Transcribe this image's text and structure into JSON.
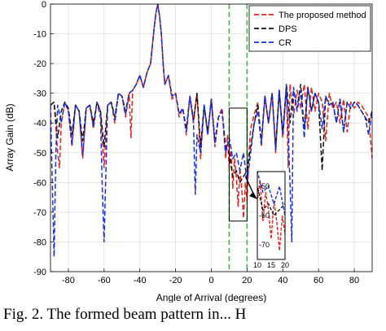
{
  "caption": "Fig. 2. The formed beam pattern in... H",
  "chart_data": {
    "type": "line",
    "title": "",
    "xlabel": "Angle of Arrival (degrees)",
    "ylabel": "Array Gain (dB)",
    "xlim": [
      -90,
      90
    ],
    "ylim": [
      -90,
      0
    ],
    "xticks": [
      -80,
      -60,
      -40,
      -20,
      0,
      20,
      40,
      60,
      80
    ],
    "yticks": [
      0,
      -10,
      -20,
      -30,
      -40,
      -50,
      -60,
      -70,
      -80,
      -90
    ],
    "grid": true,
    "legend_position": "top-right",
    "markers": [
      {
        "x": 10,
        "color": "#22cc22"
      },
      {
        "x": 20,
        "color": "#22cc22"
      }
    ],
    "zoom_box": {
      "x": [
        10,
        20
      ],
      "y": [
        -73,
        -35
      ]
    },
    "inset": {
      "xlim": [
        10,
        20
      ],
      "ylim": [
        -75,
        -45
      ],
      "xticks": [
        10,
        15,
        20
      ],
      "xtick_labels": [
        "10",
        "15",
        "20"
      ],
      "yticks": [
        -50,
        -60,
        -70
      ],
      "ytick_labels": [
        "-50",
        "-60",
        "-70"
      ]
    },
    "series": [
      {
        "name": "The proposed method",
        "color": "#e8201c",
        "dash": "6,3",
        "x": [
          -90,
          -88,
          -86,
          -85,
          -84,
          -82,
          -80,
          -78,
          -76,
          -74,
          -72,
          -70,
          -68,
          -66,
          -64,
          -62,
          -60,
          -58,
          -56,
          -54,
          -52,
          -50,
          -48,
          -46,
          -45,
          -44,
          -42,
          -40,
          -38,
          -36,
          -34,
          -33,
          -32,
          -31,
          -30,
          -29,
          -28,
          -27,
          -26,
          -24,
          -22,
          -20,
          -18,
          -16,
          -14,
          -12,
          -10,
          -8,
          -6,
          -4,
          -2,
          0,
          2,
          4,
          6,
          8,
          9,
          10,
          11,
          12,
          13,
          14,
          15,
          16,
          17,
          18,
          19,
          20,
          21,
          22,
          24,
          26,
          28,
          30,
          32,
          34,
          36,
          38,
          40,
          42,
          43,
          44,
          46,
          48,
          50,
          52,
          54,
          56,
          58,
          60,
          62,
          64,
          66,
          68,
          70,
          72,
          74,
          76,
          78,
          80,
          82,
          84,
          86,
          88,
          90
        ],
        "y": [
          -34,
          -33,
          -50,
          -55,
          -40,
          -33,
          -36,
          -48,
          -34,
          -36,
          -52,
          -35,
          -34,
          -42,
          -33,
          -36,
          -55,
          -34,
          -33,
          -40,
          -30,
          -31,
          -38,
          -30,
          -45,
          -29,
          -27,
          -24,
          -28,
          -23,
          -20,
          -14,
          -8,
          -3,
          0,
          -4,
          -10,
          -20,
          -27,
          -24,
          -32,
          -30,
          -38,
          -35,
          -44,
          -31,
          -40,
          -30,
          -52,
          -34,
          -44,
          -32,
          -48,
          -38,
          -35,
          -52,
          -44,
          -55,
          -48,
          -62,
          -52,
          -58,
          -68,
          -55,
          -62,
          -72,
          -60,
          -66,
          -50,
          -42,
          -37,
          -33,
          -48,
          -31,
          -40,
          -30,
          -50,
          -29,
          -45,
          -28,
          -55,
          -27,
          -38,
          -29,
          -35,
          -27,
          -42,
          -28,
          -36,
          -30,
          -33,
          -46,
          -30,
          -35,
          -33,
          -40,
          -32,
          -43,
          -33,
          -35,
          -33,
          -34,
          -36,
          -38,
          -52
        ]
      },
      {
        "name": "DPS",
        "color": "#111111",
        "dash": "6,3",
        "x": [
          -90,
          -88,
          -86,
          -84,
          -82,
          -80,
          -78,
          -76,
          -74,
          -72,
          -70,
          -68,
          -66,
          -64,
          -62,
          -60,
          -58,
          -56,
          -54,
          -52,
          -50,
          -48,
          -46,
          -44,
          -42,
          -40,
          -38,
          -36,
          -34,
          -33,
          -32,
          -31,
          -30,
          -29,
          -28,
          -27,
          -26,
          -24,
          -22,
          -20,
          -18,
          -16,
          -14,
          -12,
          -10,
          -8,
          -6,
          -4,
          -2,
          0,
          2,
          4,
          6,
          8,
          10,
          12,
          14,
          16,
          18,
          20,
          22,
          24,
          26,
          28,
          30,
          32,
          34,
          36,
          38,
          40,
          42,
          44,
          46,
          48,
          50,
          52,
          54,
          56,
          58,
          60,
          62,
          64,
          66,
          68,
          70,
          72,
          74,
          76,
          78,
          80,
          82,
          84,
          86,
          88,
          90
        ],
        "y": [
          -34,
          -33,
          -45,
          -36,
          -33,
          -35,
          -44,
          -34,
          -36,
          -46,
          -35,
          -34,
          -40,
          -33,
          -36,
          -48,
          -34,
          -33,
          -38,
          -30,
          -31,
          -36,
          -30,
          -29,
          -27,
          -24,
          -28,
          -23,
          -20,
          -14,
          -8,
          -3,
          0,
          -4,
          -10,
          -20,
          -27,
          -24,
          -31,
          -30,
          -37,
          -35,
          -42,
          -31,
          -39,
          -30,
          -48,
          -34,
          -43,
          -32,
          -46,
          -38,
          -36,
          -48,
          -50,
          -58,
          -56,
          -60,
          -58,
          -56,
          -48,
          -40,
          -34,
          -46,
          -31,
          -40,
          -30,
          -48,
          -29,
          -44,
          -27,
          -40,
          -29,
          -35,
          -27,
          -42,
          -28,
          -36,
          -30,
          -33,
          -56,
          -31,
          -34,
          -33,
          -40,
          -32,
          -43,
          -33,
          -35,
          -33,
          -34,
          -36,
          -38,
          -40,
          -36
        ]
      },
      {
        "name": "CR",
        "color": "#1a2ee8",
        "dash": "6,3",
        "x": [
          -90,
          -89,
          -88,
          -87,
          -86,
          -84,
          -82,
          -80,
          -78,
          -76,
          -74,
          -72,
          -70,
          -68,
          -66,
          -64,
          -62,
          -61,
          -60,
          -58,
          -56,
          -54,
          -52,
          -50,
          -48,
          -46,
          -44,
          -42,
          -40,
          -38,
          -36,
          -34,
          -33,
          -32,
          -31,
          -30,
          -29,
          -28,
          -27,
          -26,
          -24,
          -22,
          -20,
          -18,
          -16,
          -14,
          -12,
          -10,
          -9,
          -8,
          -6,
          -4,
          -2,
          0,
          2,
          4,
          6,
          8,
          10,
          12,
          14,
          16,
          18,
          20,
          22,
          24,
          26,
          28,
          30,
          32,
          34,
          36,
          38,
          40,
          42,
          44,
          45,
          46,
          48,
          50,
          52,
          54,
          56,
          58,
          60,
          62,
          64,
          66,
          68,
          70,
          72,
          74,
          76,
          78,
          80,
          82,
          84,
          86,
          88,
          90
        ],
        "y": [
          -34,
          -60,
          -85,
          -50,
          -34,
          -40,
          -33,
          -36,
          -47,
          -34,
          -36,
          -51,
          -35,
          -34,
          -41,
          -33,
          -38,
          -62,
          -80,
          -34,
          -33,
          -39,
          -30,
          -31,
          -37,
          -30,
          -29,
          -27,
          -24,
          -28,
          -23,
          -20,
          -14,
          -8,
          -3,
          0,
          -4,
          -10,
          -20,
          -27,
          -24,
          -31,
          -30,
          -37,
          -35,
          -43,
          -31,
          -40,
          -64,
          -44,
          -50,
          -34,
          -44,
          -32,
          -47,
          -38,
          -36,
          -50,
          -45,
          -52,
          -50,
          -56,
          -50,
          -60,
          -50,
          -40,
          -36,
          -47,
          -31,
          -40,
          -30,
          -49,
          -29,
          -44,
          -27,
          -60,
          -80,
          -28,
          -36,
          -29,
          -45,
          -28,
          -36,
          -30,
          -33,
          -42,
          -31,
          -34,
          -33,
          -40,
          -32,
          -43,
          -33,
          -35,
          -33,
          -34,
          -36,
          -38,
          -44,
          -36
        ]
      }
    ]
  }
}
